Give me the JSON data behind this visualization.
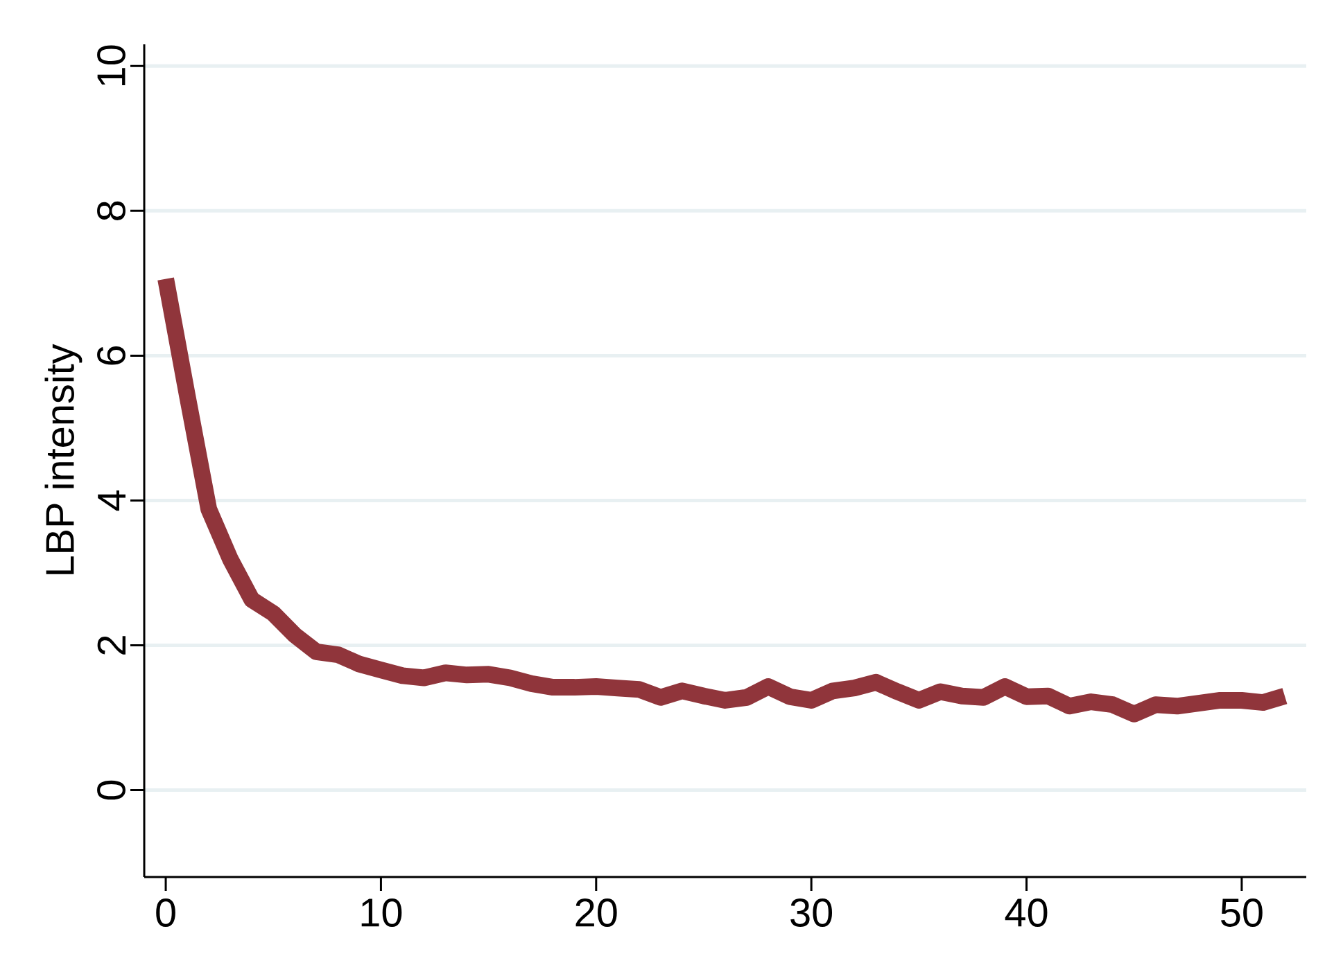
{
  "chart_data": {
    "type": "line",
    "ylabel": "LBP intensity",
    "x": [
      0,
      1,
      2,
      3,
      4,
      5,
      6,
      7,
      8,
      9,
      10,
      11,
      12,
      13,
      14,
      15,
      16,
      17,
      18,
      19,
      20,
      21,
      22,
      23,
      24,
      25,
      26,
      27,
      28,
      29,
      30,
      31,
      32,
      33,
      34,
      35,
      36,
      37,
      38,
      39,
      40,
      41,
      42,
      43,
      44,
      45,
      46,
      47,
      48,
      49,
      50,
      51,
      52
    ],
    "series": [
      {
        "color": "#90353b",
        "values": [
          7.06,
          5.45,
          3.88,
          3.19,
          2.63,
          2.44,
          2.14,
          1.91,
          1.87,
          1.74,
          1.66,
          1.58,
          1.55,
          1.62,
          1.59,
          1.6,
          1.55,
          1.47,
          1.42,
          1.42,
          1.43,
          1.41,
          1.39,
          1.28,
          1.37,
          1.3,
          1.24,
          1.28,
          1.43,
          1.29,
          1.24,
          1.37,
          1.41,
          1.49,
          1.36,
          1.24,
          1.36,
          1.3,
          1.28,
          1.43,
          1.29,
          1.3,
          1.16,
          1.22,
          1.18,
          1.05,
          1.18,
          1.16,
          1.2,
          1.24,
          1.24,
          1.21,
          1.3
        ]
      }
    ],
    "xlim": [
      -1,
      53
    ],
    "ylim": [
      -1.2,
      10.3
    ],
    "xticks": [
      0,
      10,
      20,
      30,
      40,
      50
    ],
    "yticks": [
      0,
      2,
      4,
      6,
      8,
      10
    ],
    "grid": "y",
    "marker": "none",
    "line_style": "solid"
  }
}
